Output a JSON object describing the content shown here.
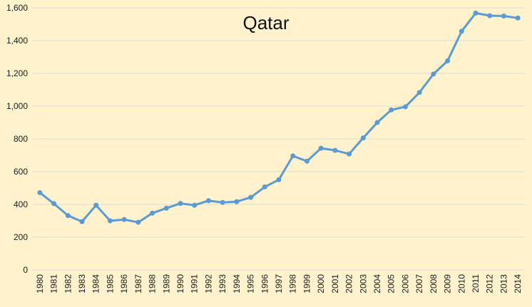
{
  "chart_data": {
    "type": "line",
    "title": "Qatar",
    "xlabel": "",
    "ylabel": "",
    "categories": [
      "1980",
      "1981",
      "1982",
      "1983",
      "1984",
      "1985",
      "1986",
      "1987",
      "1988",
      "1989",
      "1990",
      "1991",
      "1992",
      "1993",
      "1994",
      "1995",
      "1996",
      "1997",
      "1998",
      "1999",
      "2000",
      "2001",
      "2002",
      "2003",
      "2004",
      "2005",
      "2006",
      "2007",
      "2008",
      "2009",
      "2010",
      "2011",
      "2012",
      "2013",
      "2014"
    ],
    "series": [
      {
        "values": [
          472,
          405,
          332,
          295,
          395,
          300,
          308,
          291,
          347,
          377,
          406,
          395,
          423,
          412,
          417,
          443,
          507,
          551,
          696,
          664,
          743,
          730,
          708,
          806,
          900,
          977,
          996,
          1083,
          1196,
          1276,
          1457,
          1568,
          1552,
          1550,
          1538
        ]
      }
    ],
    "y_ticks": [
      "0",
      "200",
      "400",
      "600",
      "800",
      "1,000",
      "1,200",
      "1,400",
      "1,600"
    ],
    "ylim": [
      0,
      1600
    ],
    "grid": true,
    "legend": "none",
    "colors": {
      "background": "#fff2cc",
      "line": "#5b9bd5",
      "grid": "#d9d9d9"
    }
  }
}
